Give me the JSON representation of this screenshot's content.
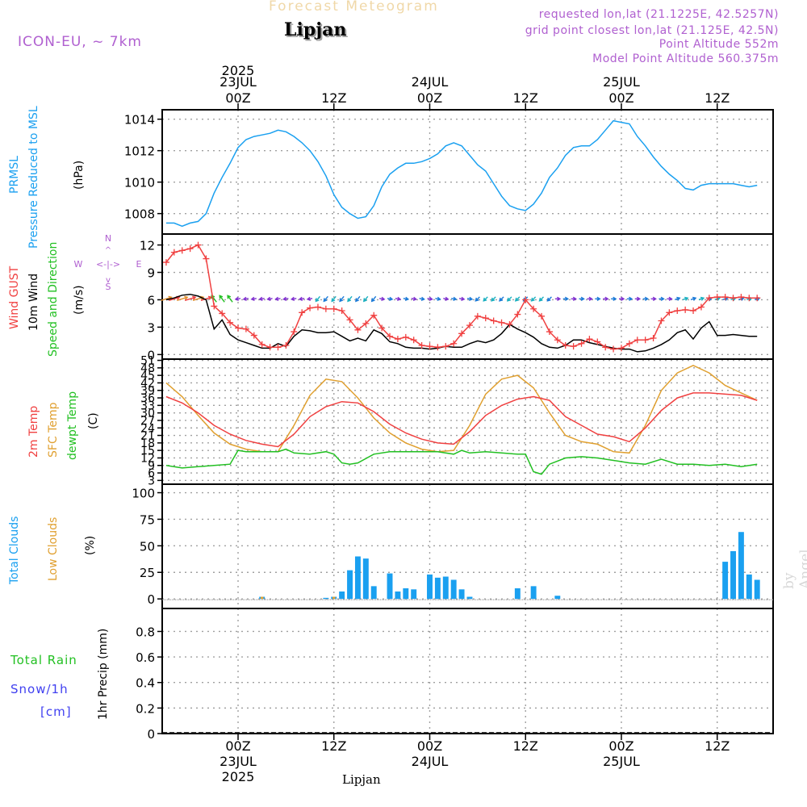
{
  "header": {
    "title": "Forecast Meteogram",
    "location": "Lipjan",
    "model": "ICON-EU, ~ 7km",
    "requested": "requested lon,lat (21.1225E, 42.5257N)",
    "grid_point": "grid point closest lon,lat (21.125E, 42.5N)",
    "point_altitude": "Point Altitude 552m",
    "model_altitude": "Model Point Altitude 560.375m"
  },
  "footer_location": "Lipjan",
  "watermark": "by Angel",
  "time_axis": {
    "top_year": "2025",
    "labels": [
      {
        "h": 0,
        "lines": [
          "23JUL",
          "00Z"
        ],
        "bottom": [
          "00Z",
          "23JUL",
          "2025"
        ]
      },
      {
        "h": 12,
        "lines": [
          "12Z"
        ],
        "bottom": [
          "12Z"
        ]
      },
      {
        "h": 24,
        "lines": [
          "24JUL",
          "00Z"
        ],
        "bottom": [
          "00Z",
          "24JUL"
        ]
      },
      {
        "h": 36,
        "lines": [
          "12Z"
        ],
        "bottom": [
          "12Z"
        ]
      },
      {
        "h": 48,
        "lines": [
          "25JUL",
          "00Z"
        ],
        "bottom": [
          "00Z",
          "25JUL"
        ]
      },
      {
        "h": 60,
        "lines": [
          "12Z"
        ],
        "bottom": [
          "12Z"
        ]
      }
    ]
  },
  "panel_labels": {
    "pressure": [
      {
        "text": "PRMSL",
        "color": "#1aa0f0"
      },
      {
        "text": "Pressure Reduced to MSL",
        "color": "#1aa0f0"
      },
      {
        "text": "(hPa)",
        "color": "#000000"
      }
    ],
    "wind": [
      {
        "text": "Wind GUST",
        "color": "#f04040"
      },
      {
        "text": "10m Wind",
        "color": "#000000"
      },
      {
        "text": "Speed and Direction",
        "color": "#22c022"
      },
      {
        "text": "(m/s)",
        "color": "#000000"
      }
    ],
    "wind_compass": {
      "n": "N",
      "s": "S",
      "w": "W",
      "e": "E",
      "arrows": "<-|->",
      "color": "#b060d0"
    },
    "temp": [
      {
        "text": "2m Temp",
        "color": "#f04040"
      },
      {
        "text": "SFC Temp",
        "color": "#e0a030"
      },
      {
        "text": "dewpt Temp",
        "color": "#22c022"
      },
      {
        "text": "(C)",
        "color": "#000000"
      }
    ],
    "clouds": [
      {
        "text": "Total Clouds",
        "color": "#1aa0f0"
      },
      {
        "text": "Low Clouds",
        "color": "#e0a030"
      },
      {
        "text": "(%)",
        "color": "#000000"
      }
    ],
    "precip": {
      "axis": "1hr Precip (mm)",
      "total_rain": "Total  Rain",
      "snow": "Snow/1h",
      "cm": "[cm]",
      "rain_color": "#22c022",
      "snow_color": "#4040f0"
    }
  },
  "chart_data": [
    {
      "type": "line",
      "name": "pressure",
      "x_unit": "hours from 23JUL 00Z",
      "xlim": [
        -9.5,
        67
      ],
      "ylim": [
        1006.7,
        1014.6
      ],
      "yticks": [
        1008,
        1010,
        1012,
        1014
      ],
      "series": [
        {
          "name": "PRMSL",
          "color": "#1aa0f0",
          "x": [
            -9,
            -8,
            -7,
            -6,
            -5,
            -4,
            -3,
            -2,
            -1,
            0,
            1,
            2,
            3,
            4,
            5,
            6,
            7,
            8,
            9,
            10,
            11,
            12,
            13,
            14,
            15,
            16,
            17,
            18,
            19,
            20,
            21,
            22,
            23,
            24,
            25,
            26,
            27,
            28,
            29,
            30,
            31,
            32,
            33,
            34,
            35,
            36,
            37,
            38,
            39,
            40,
            41,
            42,
            43,
            44,
            45,
            46,
            47,
            48,
            49,
            50,
            51,
            52,
            53,
            54,
            55,
            56,
            57,
            58,
            59,
            60,
            61,
            62,
            63,
            64,
            65
          ],
          "y": [
            1007.4,
            1007.4,
            1007.2,
            1007.4,
            1007.5,
            1008.0,
            1009.3,
            1010.3,
            1011.2,
            1012.2,
            1012.7,
            1012.9,
            1013.0,
            1013.1,
            1013.3,
            1013.2,
            1012.9,
            1012.5,
            1012.0,
            1011.3,
            1010.4,
            1009.2,
            1008.4,
            1008.0,
            1007.7,
            1007.8,
            1008.5,
            1009.7,
            1010.5,
            1010.9,
            1011.2,
            1011.2,
            1011.3,
            1011.5,
            1011.8,
            1012.3,
            1012.5,
            1012.3,
            1011.7,
            1011.1,
            1010.7,
            1009.9,
            1009.1,
            1008.5,
            1008.3,
            1008.2,
            1008.6,
            1009.3,
            1010.3,
            1010.9,
            1011.7,
            1012.2,
            1012.3,
            1012.3,
            1012.7,
            1013.3,
            1013.9,
            1013.8,
            1013.7,
            1012.9,
            1012.3,
            1011.6,
            1011.0,
            1010.5,
            1010.1,
            1009.6,
            1009.5,
            1009.8,
            1009.9,
            1009.9,
            1009.9,
            1009.9,
            1009.8,
            1009.7,
            1009.8
          ]
        }
      ]
    },
    {
      "type": "line",
      "name": "wind",
      "xlim": [
        -9.5,
        67
      ],
      "ylim": [
        -0.5,
        13.2
      ],
      "yticks": [
        0,
        3,
        6,
        9,
        12
      ],
      "series": [
        {
          "name": "Wind GUST",
          "color": "#f04040",
          "marker": "+",
          "x": [
            -9,
            -8,
            -7,
            -6,
            -5,
            -4,
            -3,
            -2,
            -1,
            0,
            1,
            2,
            3,
            4,
            5,
            6,
            7,
            8,
            9,
            10,
            11,
            12,
            13,
            14,
            15,
            16,
            17,
            18,
            19,
            20,
            21,
            22,
            23,
            24,
            25,
            26,
            27,
            28,
            29,
            30,
            31,
            32,
            33,
            34,
            35,
            36,
            37,
            38,
            39,
            40,
            41,
            42,
            43,
            44,
            45,
            46,
            47,
            48,
            49,
            50,
            51,
            52,
            53,
            54,
            55,
            56,
            57,
            58,
            59,
            60,
            61,
            62,
            63,
            64,
            65
          ],
          "y": [
            10.1,
            11.2,
            11.4,
            11.6,
            12.0,
            10.5,
            5.3,
            4.5,
            3.5,
            2.9,
            2.8,
            2.1,
            1.1,
            0.8,
            0.8,
            1.0,
            2.5,
            4.6,
            5.1,
            5.2,
            5.0,
            5.0,
            4.8,
            3.8,
            2.7,
            3.4,
            4.3,
            2.9,
            2.0,
            1.7,
            1.9,
            1.6,
            1.0,
            0.9,
            0.8,
            0.9,
            1.2,
            2.3,
            3.2,
            4.2,
            4.0,
            3.7,
            3.5,
            3.3,
            4.4,
            6.0,
            5.0,
            4.2,
            2.5,
            1.6,
            1.0,
            0.9,
            1.2,
            1.7,
            1.4,
            0.8,
            0.6,
            0.7,
            1.2,
            1.6,
            1.6,
            1.8,
            3.7,
            4.6,
            4.8,
            4.9,
            4.8,
            5.2,
            6.2,
            6.3,
            6.3,
            6.2,
            6.3,
            6.2,
            6.2
          ]
        },
        {
          "name": "10m Wind",
          "color": "#000000",
          "x": [
            -9,
            -8,
            -7,
            -6,
            -5,
            -4,
            -3,
            -2,
            -1,
            0,
            1,
            2,
            3,
            4,
            5,
            6,
            7,
            8,
            9,
            10,
            11,
            12,
            13,
            14,
            15,
            16,
            17,
            18,
            19,
            20,
            21,
            22,
            23,
            24,
            25,
            26,
            27,
            28,
            29,
            30,
            31,
            32,
            33,
            34,
            35,
            36,
            37,
            38,
            39,
            40,
            41,
            42,
            43,
            44,
            45,
            46,
            47,
            48,
            49,
            50,
            51,
            52,
            53,
            54,
            55,
            56,
            57,
            58,
            59,
            60,
            61,
            62,
            63,
            64,
            65
          ],
          "y": [
            6.0,
            6.2,
            6.5,
            6.6,
            6.4,
            6.0,
            2.8,
            3.8,
            2.2,
            1.6,
            1.3,
            1.0,
            0.7,
            0.7,
            1.2,
            0.9,
            2.0,
            2.7,
            2.6,
            2.4,
            2.4,
            2.5,
            2.0,
            1.5,
            1.8,
            1.5,
            2.7,
            2.3,
            1.4,
            1.2,
            0.8,
            0.7,
            0.7,
            0.6,
            0.7,
            0.9,
            0.8,
            0.8,
            1.2,
            1.5,
            1.3,
            1.6,
            2.3,
            3.3,
            2.8,
            2.4,
            1.9,
            1.2,
            0.8,
            0.7,
            1.0,
            1.6,
            1.6,
            1.3,
            1.1,
            0.9,
            0.7,
            0.6,
            0.6,
            0.3,
            0.4,
            0.7,
            1.1,
            1.6,
            2.4,
            2.7,
            1.7,
            2.9,
            3.6,
            2.1,
            2.1,
            2.2,
            2.1,
            2.0,
            2.0
          ]
        }
      ],
      "direction_arrows": {
        "level": 6.1,
        "hours_from": -9,
        "hours_to": 65,
        "colors": [
          "#f04040",
          "#e09030",
          "#22c022",
          "#1ab0c0",
          "#1a7ad8",
          "#8030d0"
        ]
      }
    },
    {
      "type": "line",
      "name": "temperature",
      "xlim": [
        -9.5,
        67
      ],
      "ylim": [
        1.5,
        51.5
      ],
      "yticks": [
        3,
        6,
        9,
        12,
        15,
        18,
        21,
        24,
        27,
        30,
        33,
        36,
        39,
        42,
        45,
        48,
        51
      ],
      "series": [
        {
          "name": "2m Temp",
          "color": "#f04040",
          "x": [
            -9,
            -7,
            -5,
            -3,
            -1,
            1,
            3,
            5,
            7,
            9,
            11,
            13,
            15,
            17,
            19,
            21,
            23,
            25,
            27,
            29,
            31,
            33,
            35,
            37,
            39,
            41,
            43,
            45,
            47,
            49,
            51,
            53,
            55,
            57,
            59,
            61,
            63,
            65
          ],
          "y": [
            36.5,
            34.0,
            30.0,
            25.0,
            21.5,
            19.0,
            17.5,
            16.5,
            21.5,
            28.5,
            32.5,
            34.5,
            34.0,
            30.5,
            25.5,
            22.0,
            19.5,
            18.0,
            17.5,
            22.5,
            29.0,
            33.0,
            35.5,
            36.5,
            35.0,
            28.5,
            25.0,
            21.5,
            20.5,
            18.5,
            24.0,
            31.0,
            36.0,
            38.0,
            38.0,
            37.5,
            37.0,
            35.0
          ]
        },
        {
          "name": "SFC Temp",
          "color": "#e0a030",
          "x": [
            -9,
            -7,
            -5,
            -3,
            -1,
            1,
            3,
            5,
            7,
            9,
            11,
            13,
            15,
            17,
            19,
            21,
            23,
            25,
            27,
            29,
            31,
            33,
            35,
            37,
            39,
            41,
            43,
            45,
            47,
            49,
            51,
            53,
            55,
            57,
            59,
            61,
            63,
            65
          ],
          "y": [
            42.0,
            36.5,
            29.0,
            22.0,
            17.5,
            15.5,
            14.5,
            14.5,
            25.0,
            37.0,
            43.5,
            42.5,
            36.0,
            28.0,
            22.0,
            18.0,
            15.5,
            14.5,
            15.0,
            25.0,
            37.5,
            43.5,
            45.0,
            40.0,
            30.0,
            21.0,
            18.5,
            17.5,
            14.5,
            14.0,
            25.0,
            39.0,
            46.0,
            49.0,
            46.0,
            41.0,
            38.0,
            35.0
          ]
        },
        {
          "name": "dewpt Temp",
          "color": "#22c022",
          "x": [
            -9,
            -7,
            -5,
            -3,
            -1,
            0,
            1,
            3,
            5,
            6,
            7,
            9,
            11,
            12,
            13,
            14,
            15,
            17,
            19,
            21,
            23,
            25,
            27,
            28,
            29,
            31,
            33,
            35,
            36,
            37,
            38,
            39,
            41,
            43,
            45,
            47,
            49,
            51,
            53,
            55,
            57,
            59,
            61,
            63,
            65
          ],
          "y": [
            9.0,
            8.0,
            8.5,
            9.0,
            9.5,
            15.0,
            14.5,
            14.5,
            14.5,
            15.5,
            14.0,
            13.5,
            14.5,
            13.5,
            10.0,
            9.5,
            10.0,
            13.5,
            14.5,
            14.5,
            14.5,
            14.5,
            13.5,
            15.0,
            14.0,
            14.5,
            14.0,
            13.5,
            13.5,
            6.5,
            5.5,
            9.5,
            12.0,
            12.5,
            12.0,
            11.0,
            10.0,
            9.5,
            11.5,
            9.5,
            9.5,
            9.0,
            9.5,
            8.5,
            9.5
          ]
        }
      ]
    },
    {
      "type": "bar",
      "name": "clouds",
      "xlim": [
        -9.5,
        67
      ],
      "ylim": [
        -9,
        108
      ],
      "yticks": [
        0,
        25,
        50,
        75,
        100
      ],
      "series": [
        {
          "name": "Total Clouds",
          "color": "#1aa0f0",
          "x": [
            3,
            11,
            12,
            13,
            14,
            15,
            16,
            17,
            19,
            20,
            21,
            22,
            24,
            25,
            26,
            27,
            28,
            29,
            35,
            37,
            40,
            61,
            62,
            63,
            64,
            65
          ],
          "y": [
            2,
            1,
            2,
            7,
            27,
            40,
            38,
            12,
            24,
            7,
            10,
            9,
            23,
            20,
            21,
            18,
            9,
            2,
            10,
            12,
            3,
            35,
            45,
            63,
            23,
            18
          ]
        },
        {
          "name": "Low Clouds",
          "color": "#e0a030",
          "x": [
            3,
            12
          ],
          "y": [
            2,
            2
          ]
        }
      ]
    },
    {
      "type": "bar",
      "name": "precip",
      "xlim": [
        -9.5,
        67
      ],
      "ylim": [
        0,
        0.98
      ],
      "yticks": [
        0,
        0.2,
        0.4,
        0.6,
        0.8
      ],
      "ytick_labels": [
        "0",
        "0.2",
        "0.4",
        "0.6",
        "0.8"
      ],
      "series": [
        {
          "name": "Total Rain",
          "color": "#22c022",
          "x": [],
          "y": []
        },
        {
          "name": "Snow/1h",
          "color": "#4040f0",
          "x": [],
          "y": []
        }
      ]
    }
  ]
}
